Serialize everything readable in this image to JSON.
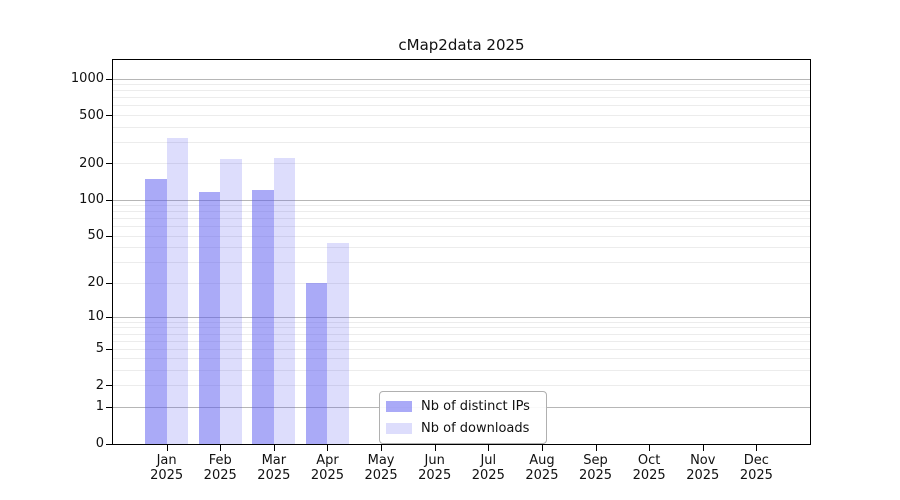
{
  "title": "cMap2data 2025",
  "chart_data": {
    "type": "bar",
    "title": "cMap2data 2025",
    "x_months": [
      "Jan",
      "Feb",
      "Mar",
      "Apr",
      "May",
      "Jun",
      "Jul",
      "Aug",
      "Sep",
      "Oct",
      "Nov",
      "Dec"
    ],
    "x_year": "2025",
    "series": [
      {
        "name": "Nb of distinct IPs",
        "color": "rgba(85,85,240,0.5)",
        "values": [
          150,
          118,
          122,
          20,
          0,
          0,
          0,
          0,
          0,
          0,
          0,
          0
        ]
      },
      {
        "name": "Nb of downloads",
        "color": "rgba(85,85,240,0.2)",
        "values": [
          330,
          218,
          223,
          44,
          0,
          0,
          0,
          0,
          0,
          0,
          0,
          0
        ]
      }
    ],
    "y_ticks": [
      0,
      1,
      2,
      5,
      10,
      20,
      50,
      100,
      200,
      500,
      1000
    ],
    "grid_major": [
      1,
      10,
      100,
      1000
    ],
    "grid_minor": [
      2,
      3,
      4,
      5,
      6,
      7,
      8,
      9,
      20,
      30,
      40,
      50,
      60,
      70,
      80,
      90,
      200,
      300,
      400,
      500,
      600,
      700,
      800,
      900
    ],
    "scale": "symlog-ln(1+x)",
    "y_max": 1434,
    "ylim": [
      0,
      1434
    ],
    "grid_color_major": "#b6b6b6",
    "grid_color_minor": "#ececec",
    "legend_position": "lower center"
  }
}
